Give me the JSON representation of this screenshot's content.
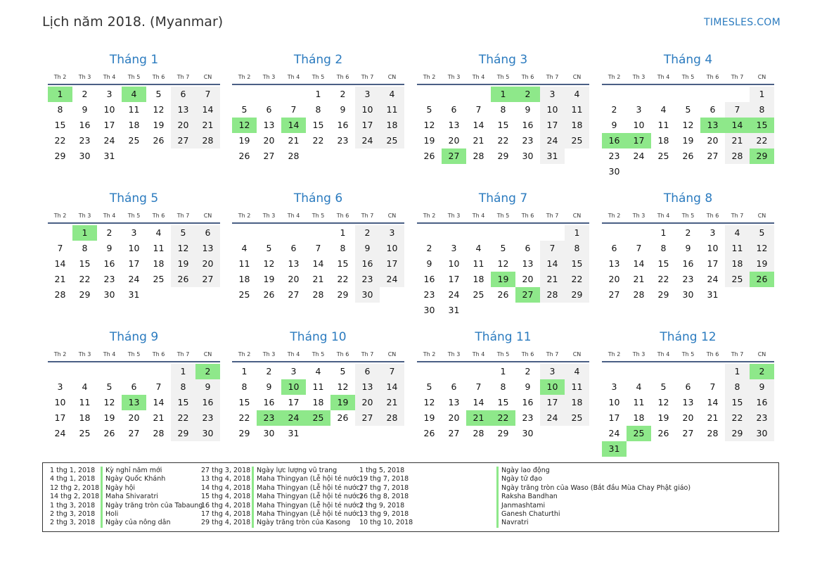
{
  "header": {
    "title": "Lịch năm 2018. (Myanmar)",
    "brand": "TIMESLES.COM"
  },
  "weekdays": [
    "Th 2",
    "Th 3",
    "Th 4",
    "Th 5",
    "Th 6",
    "Th 7",
    "CN"
  ],
  "months": [
    {
      "name": "Tháng 1",
      "offset": 0,
      "days": 31,
      "holidays": [
        1,
        4
      ]
    },
    {
      "name": "Tháng 2",
      "offset": 3,
      "days": 28,
      "holidays": [
        12,
        14
      ]
    },
    {
      "name": "Tháng 3",
      "offset": 3,
      "days": 31,
      "holidays": [
        1,
        2,
        27
      ]
    },
    {
      "name": "Tháng 4",
      "offset": 6,
      "days": 30,
      "holidays": [
        13,
        14,
        15,
        16,
        17,
        29
      ]
    },
    {
      "name": "Tháng 5",
      "offset": 1,
      "days": 31,
      "holidays": [
        1
      ]
    },
    {
      "name": "Tháng 6",
      "offset": 4,
      "days": 30,
      "holidays": []
    },
    {
      "name": "Tháng 7",
      "offset": 6,
      "days": 31,
      "holidays": [
        19,
        27
      ]
    },
    {
      "name": "Tháng 8",
      "offset": 2,
      "days": 31,
      "holidays": [
        26
      ]
    },
    {
      "name": "Tháng 9",
      "offset": 5,
      "days": 30,
      "holidays": [
        2,
        13
      ]
    },
    {
      "name": "Tháng 10",
      "offset": 0,
      "days": 31,
      "holidays": [
        10,
        19,
        23,
        24,
        25
      ]
    },
    {
      "name": "Tháng 11",
      "offset": 3,
      "days": 30,
      "holidays": [
        10,
        21,
        22
      ]
    },
    {
      "name": "Tháng 12",
      "offset": 5,
      "days": 31,
      "holidays": [
        2,
        25,
        31
      ]
    }
  ],
  "legend": [
    [
      {
        "date": "1 thg 1, 2018",
        "name": "Kỳ nghỉ năm mới"
      },
      {
        "date": "4 thg 1, 2018",
        "name": "Ngày Quốc Khánh"
      },
      {
        "date": "12 thg 2, 2018",
        "name": "Ngày hội"
      },
      {
        "date": "14 thg 2, 2018",
        "name": "Maha Shivaratri"
      },
      {
        "date": "1 thg 3, 2018",
        "name": "Ngày trăng tròn của Tabaung"
      },
      {
        "date": "2 thg 3, 2018",
        "name": "Holi"
      },
      {
        "date": "2 thg 3, 2018",
        "name": "Ngày của nông dân"
      }
    ],
    [
      {
        "date": "27 thg 3, 2018",
        "name": "Ngày lực lượng vũ trang"
      },
      {
        "date": "13 thg 4, 2018",
        "name": "Maha Thingyan (Lễ hội té nước)"
      },
      {
        "date": "14 thg 4, 2018",
        "name": "Maha Thingyan (Lễ hội té nước)"
      },
      {
        "date": "15 thg 4, 2018",
        "name": "Maha Thingyan (Lễ hội té nước)"
      },
      {
        "date": "16 thg 4, 2018",
        "name": "Maha Thingyan (Lễ hội té nước)"
      },
      {
        "date": "17 thg 4, 2018",
        "name": "Maha Thingyan (Lễ hội té nước)"
      },
      {
        "date": "29 thg 4, 2018",
        "name": "Ngày trăng tròn của Kasong"
      }
    ],
    [
      {
        "date": "1 thg 5, 2018",
        "name": "Ngày lao động"
      },
      {
        "date": "19 thg 7, 2018",
        "name": "Ngày tử đạo"
      },
      {
        "date": "27 thg 7, 2018",
        "name": "Ngày trăng tròn của Waso (Bắt đầu Mùa Chay Phật giáo)"
      },
      {
        "date": "26 thg 8, 2018",
        "name": "Raksha Bandhan"
      },
      {
        "date": "2 thg 9, 2018",
        "name": "Janmashtami"
      },
      {
        "date": "13 thg 9, 2018",
        "name": "Ganesh Chaturthi"
      },
      {
        "date": "10 thg 10, 2018",
        "name": "Navratri"
      }
    ]
  ]
}
